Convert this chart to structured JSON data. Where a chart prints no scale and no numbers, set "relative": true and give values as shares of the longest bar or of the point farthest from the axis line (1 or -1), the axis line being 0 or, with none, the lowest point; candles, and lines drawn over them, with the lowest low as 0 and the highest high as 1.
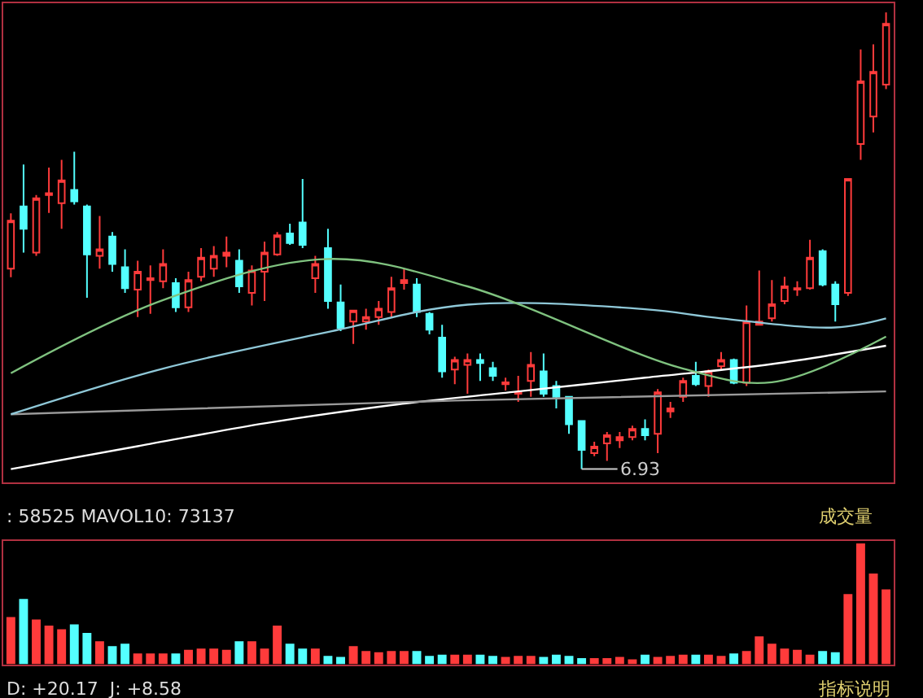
{
  "chart_data": [
    {
      "type": "candlestick",
      "relative": true,
      "categories": [
        null,
        null,
        null,
        null,
        null,
        null,
        null,
        null,
        null,
        null,
        null,
        null,
        null,
        null,
        null,
        null,
        null,
        null,
        null,
        null,
        null,
        null,
        null,
        null,
        null,
        null,
        null,
        null,
        null,
        null,
        null,
        null,
        null,
        null,
        null,
        null,
        null,
        null,
        null,
        null,
        null,
        null,
        null,
        null,
        null,
        null,
        null,
        null,
        null,
        null,
        null,
        null,
        null,
        null,
        null,
        null,
        null,
        null,
        null,
        null,
        null,
        null,
        null,
        null,
        null,
        null,
        null,
        null,
        null,
        null
      ],
      "ohlc": [
        [
          0.439,
          0.56,
          0.42,
          0.544
        ],
        [
          0.575,
          0.667,
          0.474,
          0.526
        ],
        [
          0.474,
          0.6,
          0.467,
          0.593
        ],
        [
          0.6,
          0.66,
          0.561,
          0.604
        ],
        [
          0.582,
          0.677,
          0.526,
          0.632
        ],
        [
          0.611,
          0.695,
          0.579,
          0.586
        ],
        [
          0.575,
          0.579,
          0.375,
          0.47
        ],
        [
          0.467,
          0.554,
          0.439,
          0.481
        ],
        [
          0.509,
          0.519,
          0.432,
          0.449
        ],
        [
          0.442,
          0.481,
          0.386,
          0.396
        ],
        [
          0.393,
          0.456,
          0.333,
          0.432
        ],
        [
          0.414,
          0.446,
          0.34,
          0.418
        ],
        [
          0.411,
          0.481,
          0.396,
          0.449
        ],
        [
          0.407,
          0.418,
          0.344,
          0.354
        ],
        [
          0.354,
          0.432,
          0.344,
          0.414
        ],
        [
          0.421,
          0.484,
          0.411,
          0.463
        ],
        [
          0.439,
          0.488,
          0.421,
          0.467
        ],
        [
          0.467,
          0.509,
          0.442,
          0.474
        ],
        [
          0.456,
          0.481,
          0.386,
          0.4
        ],
        [
          0.386,
          0.446,
          0.358,
          0.435
        ],
        [
          0.432,
          0.498,
          0.368,
          0.474
        ],
        [
          0.47,
          0.519,
          0.467,
          0.512
        ],
        [
          0.516,
          0.537,
          0.491,
          0.495
        ],
        [
          0.54,
          0.635,
          0.484,
          0.491
        ],
        [
          0.418,
          0.467,
          0.386,
          0.449
        ],
        [
          0.484,
          0.526,
          0.351,
          0.368
        ],
        [
          0.365,
          0.404,
          0.302,
          0.309
        ],
        [
          0.323,
          0.347,
          0.274,
          0.347
        ],
        [
          0.323,
          0.351,
          0.305,
          0.333
        ],
        [
          0.333,
          0.368,
          0.316,
          0.351
        ],
        [
          0.344,
          0.421,
          0.333,
          0.396
        ],
        [
          0.407,
          0.439,
          0.393,
          0.414
        ],
        [
          0.404,
          0.418,
          0.333,
          0.344
        ],
        [
          0.34,
          0.344,
          0.295,
          0.305
        ],
        [
          0.288,
          0.316,
          0.2,
          0.214
        ],
        [
          0.218,
          0.246,
          0.186,
          0.239
        ],
        [
          0.228,
          0.253,
          0.165,
          0.239
        ],
        [
          0.239,
          0.253,
          0.193,
          0.232
        ],
        [
          0.221,
          0.235,
          0.193,
          0.204
        ],
        [
          0.186,
          0.2,
          0.172,
          0.19
        ],
        [
          0.165,
          0.204,
          0.147,
          0.168
        ],
        [
          0.193,
          0.256,
          0.158,
          0.228
        ],
        [
          0.214,
          0.253,
          0.158,
          0.165
        ],
        [
          0.182,
          0.193,
          0.133,
          0.158
        ],
        [
          0.158,
          0.158,
          0.077,
          0.098
        ],
        [
          0.105,
          0.105,
          0,
          0.042
        ],
        [
          0.035,
          0.06,
          0.028,
          0.049
        ],
        [
          0.056,
          0.081,
          0.018,
          0.074
        ],
        [
          0.063,
          0.081,
          0.046,
          0.07
        ],
        [
          0.07,
          0.095,
          0.063,
          0.088
        ],
        [
          0.088,
          0.109,
          0.063,
          0.074
        ],
        [
          0.077,
          0.175,
          0.035,
          0.168
        ],
        [
          0.126,
          0.147,
          0.112,
          0.133
        ],
        [
          0.158,
          0.2,
          0.147,
          0.193
        ],
        [
          0.204,
          0.235,
          0.182,
          0.186
        ],
        [
          0.182,
          0.218,
          0.158,
          0.214
        ],
        [
          0.225,
          0.256,
          0.218,
          0.239
        ],
        [
          0.239,
          0.242,
          0.186,
          0.189
        ],
        [
          0.189,
          0.358,
          0.182,
          0.323
        ],
        [
          0.316,
          0.435,
          0.316,
          0.323
        ],
        [
          0.33,
          0.414,
          0.323,
          0.361
        ],
        [
          0.368,
          0.421,
          0.361,
          0.4
        ],
        [
          0.393,
          0.411,
          0.379,
          0.396
        ],
        [
          0.396,
          0.502,
          0.393,
          0.463
        ],
        [
          0.477,
          0.481,
          0.4,
          0.404
        ],
        [
          0.404,
          0.411,
          0.323,
          0.361
        ],
        [
          0.386,
          0.635,
          0.379,
          0.635
        ],
        [
          0.712,
          0.919,
          0.677,
          0.849
        ],
        [
          0.772,
          0.93,
          0.737,
          0.87
        ],
        [
          0.842,
          1,
          0.832,
          0.975
        ]
      ],
      "series": [
        {
          "type": "line",
          "color": "#ffffff",
          "values": [
            0.0,
            null,
            null,
            null,
            null,
            null,
            null,
            null,
            null,
            null,
            0.05,
            null,
            null,
            null,
            null,
            null,
            null,
            null,
            null,
            null,
            0.1,
            null,
            null,
            null,
            null,
            null,
            null,
            null,
            null,
            null,
            0.14,
            null,
            null,
            null,
            null,
            null,
            null,
            null,
            null,
            null,
            0.17,
            null,
            null,
            null,
            null,
            null,
            null,
            null,
            null,
            null,
            0.2,
            null,
            null,
            null,
            null,
            null,
            null,
            null,
            null,
            null,
            0.23,
            null,
            null,
            null,
            null,
            null,
            null,
            null,
            null,
            0.27
          ]
        },
        {
          "type": "line",
          "color": "#9a9a9a",
          "values": [
            0.12,
            null,
            null,
            null,
            null,
            null,
            null,
            null,
            null,
            null,
            null,
            null,
            null,
            null,
            null,
            null,
            null,
            null,
            null,
            null,
            null,
            null,
            null,
            null,
            null,
            null,
            null,
            null,
            null,
            null,
            null,
            null,
            null,
            null,
            null,
            0.15,
            null,
            null,
            null,
            null,
            null,
            null,
            null,
            null,
            null,
            null,
            null,
            null,
            null,
            null,
            null,
            null,
            null,
            null,
            null,
            null,
            null,
            null,
            null,
            null,
            null,
            null,
            null,
            null,
            null,
            null,
            null,
            null,
            null,
            0.17
          ]
        },
        {
          "type": "line",
          "color": "#8fc8d8",
          "values": [
            0.12,
            null,
            null,
            null,
            null,
            null,
            null,
            null,
            null,
            null,
            null,
            null,
            0.22,
            null,
            null,
            null,
            null,
            null,
            null,
            null,
            null,
            null,
            null,
            null,
            null,
            0.3,
            null,
            null,
            null,
            null,
            null,
            null,
            null,
            null,
            null,
            null,
            0.36,
            null,
            null,
            null,
            null,
            null,
            null,
            null,
            null,
            null,
            null,
            null,
            null,
            null,
            0.35,
            null,
            null,
            null,
            null,
            null,
            0.33,
            null,
            null,
            null,
            null,
            null,
            null,
            null,
            null,
            0.31,
            null,
            null,
            null,
            0.33
          ]
        },
        {
          "type": "line",
          "color": "#7fc27f",
          "values": [
            0.21,
            null,
            null,
            null,
            null,
            null,
            null,
            null,
            null,
            null,
            null,
            null,
            0.37,
            null,
            null,
            null,
            null,
            null,
            null,
            null,
            null,
            null,
            null,
            null,
            null,
            0.46,
            null,
            null,
            null,
            null,
            null,
            null,
            null,
            null,
            null,
            null,
            0.4,
            null,
            null,
            null,
            null,
            null,
            null,
            null,
            null,
            null,
            null,
            null,
            null,
            null,
            null,
            null,
            null,
            0.22,
            null,
            null,
            null,
            null,
            null,
            null,
            0.19,
            null,
            null,
            null,
            null,
            null,
            null,
            null,
            null,
            0.29
          ]
        }
      ],
      "annotations": [
        "6.93"
      ]
    },
    {
      "type": "bar",
      "relative": true,
      "categories": [
        null,
        null,
        null,
        null,
        null,
        null,
        null,
        null,
        null,
        null,
        null,
        null,
        null,
        null,
        null,
        null,
        null,
        null,
        null,
        null,
        null,
        null,
        null,
        null,
        null,
        null,
        null,
        null,
        null,
        null,
        null,
        null,
        null,
        null,
        null,
        null,
        null,
        null,
        null,
        null,
        null,
        null,
        null,
        null,
        null,
        null,
        null,
        null,
        null,
        null,
        null,
        null,
        null,
        null,
        null,
        null,
        null,
        null,
        null,
        null,
        null,
        null,
        null,
        null,
        null,
        null,
        null,
        null,
        null,
        null
      ],
      "values": [
        0.39,
        0.54,
        0.37,
        0.32,
        0.29,
        0.33,
        0.26,
        0.19,
        0.15,
        0.17,
        0.09,
        0.09,
        0.09,
        0.09,
        0.12,
        0.13,
        0.13,
        0.12,
        0.19,
        0.19,
        0.13,
        0.32,
        0.17,
        0.13,
        0.13,
        0.07,
        0.06,
        0.15,
        0.11,
        0.1,
        0.11,
        0.11,
        0.11,
        0.07,
        0.08,
        0.08,
        0.08,
        0.08,
        0.07,
        0.06,
        0.07,
        0.07,
        0.06,
        0.08,
        0.07,
        0.05,
        0.05,
        0.05,
        0.06,
        0.04,
        0.08,
        0.06,
        0.07,
        0.08,
        0.08,
        0.08,
        0.07,
        0.09,
        0.11,
        0.23,
        0.17,
        0.13,
        0.12,
        0.08,
        0.11,
        0.1,
        0.58,
        1,
        0.75,
        0.62
      ],
      "colors": [
        "#ff3b3b",
        "#54ffff",
        "#ff3b3b",
        "#ff3b3b",
        "#ff3b3b",
        "#54ffff",
        "#54ffff",
        "#ff3b3b",
        "#54ffff",
        "#54ffff",
        "#ff3b3b",
        "#ff3b3b",
        "#ff3b3b",
        "#54ffff",
        "#ff3b3b",
        "#ff3b3b",
        "#ff3b3b",
        "#ff3b3b",
        "#54ffff",
        "#ff3b3b",
        "#ff3b3b",
        "#ff3b3b",
        "#54ffff",
        "#54ffff",
        "#ff3b3b",
        "#54ffff",
        "#54ffff",
        "#ff3b3b",
        "#ff3b3b",
        "#ff3b3b",
        "#ff3b3b",
        "#ff3b3b",
        "#54ffff",
        "#54ffff",
        "#54ffff",
        "#ff3b3b",
        "#ff3b3b",
        "#54ffff",
        "#54ffff",
        "#ff3b3b",
        "#ff3b3b",
        "#ff3b3b",
        "#54ffff",
        "#54ffff",
        "#54ffff",
        "#54ffff",
        "#ff3b3b",
        "#ff3b3b",
        "#ff3b3b",
        "#ff3b3b",
        "#54ffff",
        "#ff3b3b",
        "#ff3b3b",
        "#ff3b3b",
        "#54ffff",
        "#ff3b3b",
        "#ff3b3b",
        "#54ffff",
        "#ff3b3b",
        "#ff3b3b",
        "#ff3b3b",
        "#ff3b3b",
        "#ff3b3b",
        "#ff3b3b",
        "#54ffff",
        "#54ffff",
        "#ff3b3b",
        "#ff3b3b",
        "#ff3b3b",
        "#ff3b3b"
      ],
      "annotations": [
        ": 58525 MAVOL10: 73137",
        "成交量",
        "D: +20.17  J: +8.58",
        "指标说明"
      ]
    }
  ]
}
